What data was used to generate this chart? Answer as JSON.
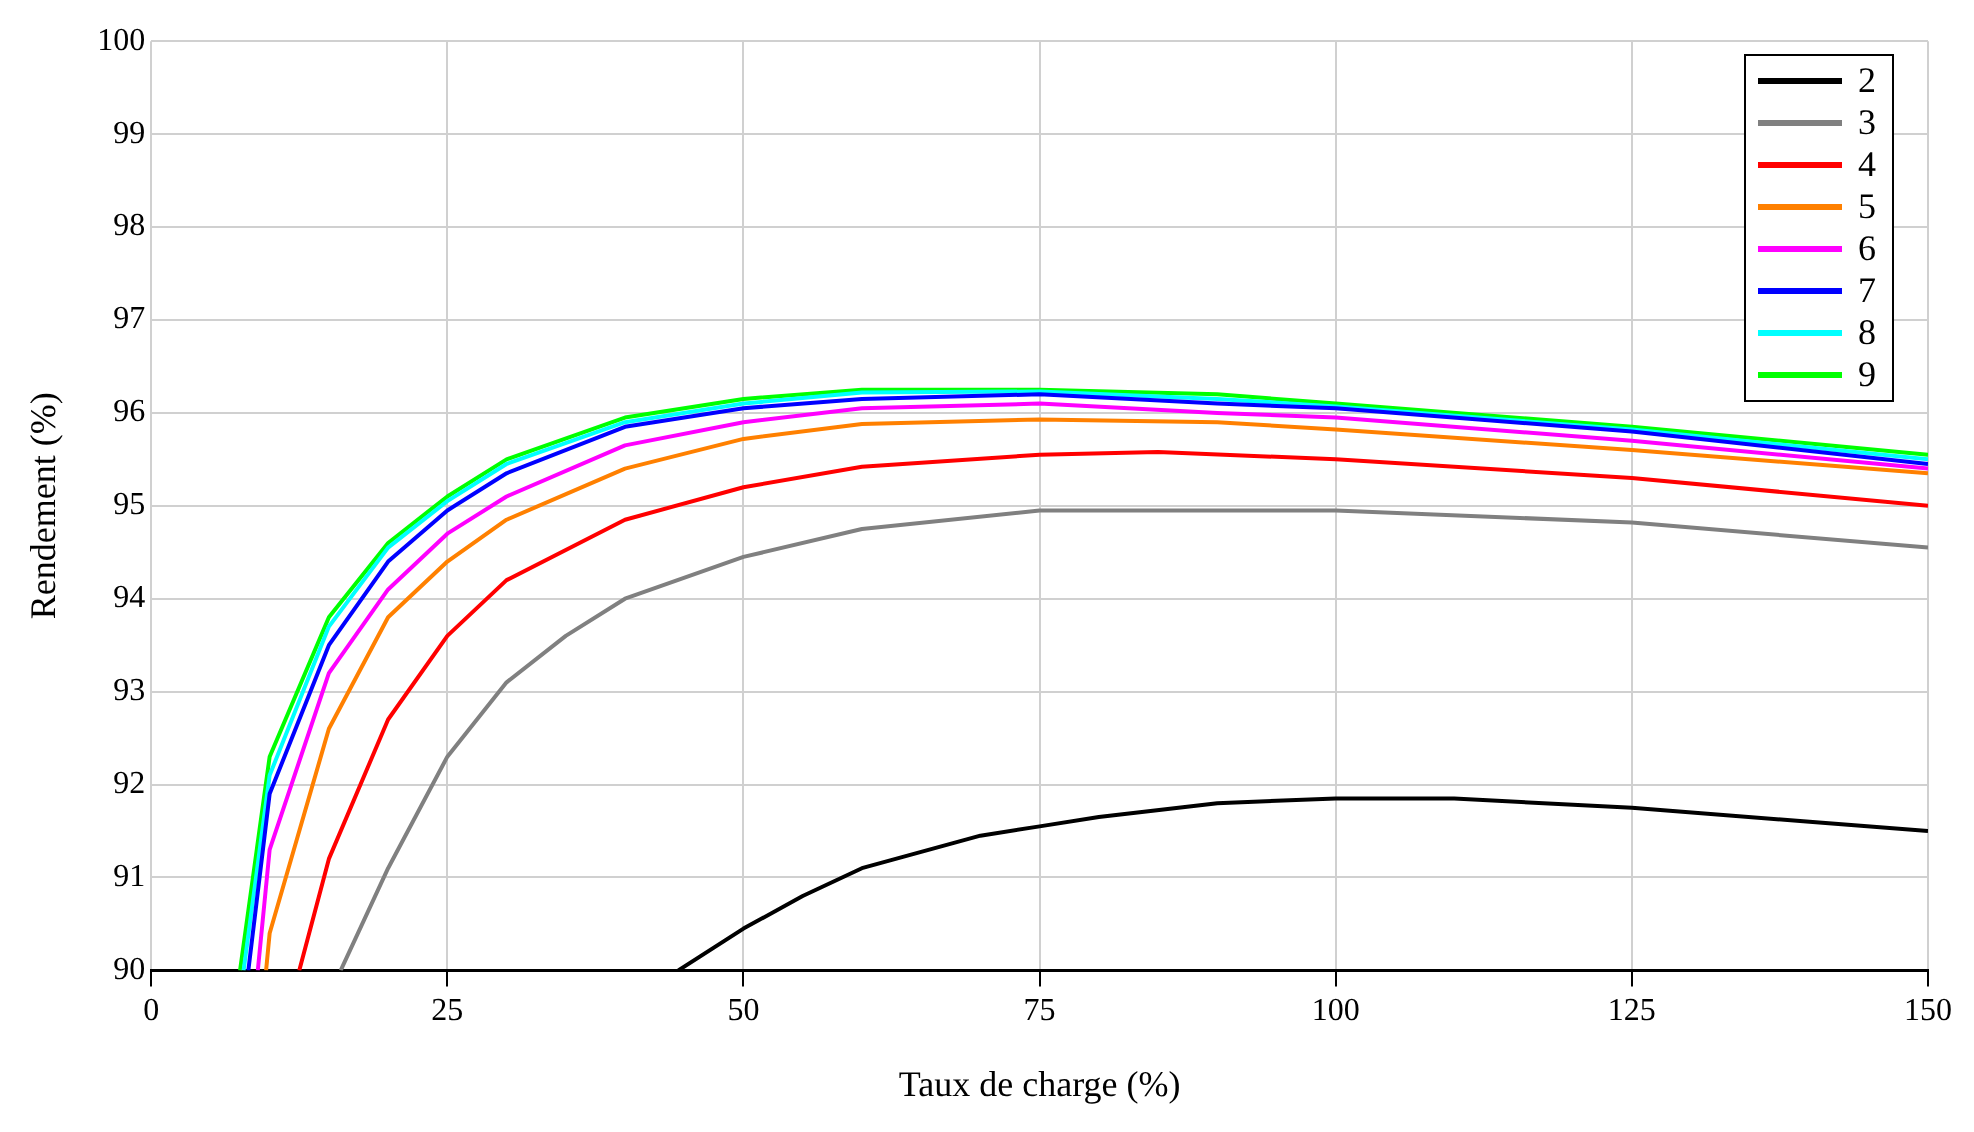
{
  "chart_data": {
    "type": "line",
    "xlabel": "Taux de charge (%)",
    "ylabel": "Rendement (%)",
    "xlim": [
      0,
      150
    ],
    "xticks": [
      0,
      25,
      50,
      75,
      100,
      125,
      150
    ],
    "ylim": [
      90,
      100
    ],
    "yticks": [
      90,
      91,
      92,
      93,
      94,
      95,
      96,
      97,
      98,
      99,
      100
    ],
    "grid": true,
    "legend": "top right",
    "marker": "none",
    "line_style": "solid",
    "series": [
      {
        "name": "2",
        "color": "#000000",
        "x": [
          44.5,
          50,
          55,
          60,
          70,
          75,
          80,
          90,
          100,
          110,
          125,
          140,
          150
        ],
        "values": [
          90,
          90.45,
          90.8,
          91.1,
          91.45,
          91.55,
          91.65,
          91.8,
          91.85,
          91.85,
          91.75,
          91.6,
          91.5
        ]
      },
      {
        "name": "3",
        "color": "#808080",
        "x": [
          16,
          20,
          25,
          30,
          35,
          40,
          50,
          60,
          75,
          100,
          125,
          150
        ],
        "values": [
          90,
          91.1,
          92.3,
          93.1,
          93.6,
          94,
          94.45,
          94.75,
          94.95,
          94.95,
          94.82,
          94.55
        ]
      },
      {
        "name": "4",
        "color": "#ff0000",
        "x": [
          12.5,
          15,
          20,
          25,
          30,
          40,
          50,
          60,
          75,
          85,
          100,
          125,
          150
        ],
        "values": [
          90,
          91.2,
          92.7,
          93.6,
          94.2,
          94.85,
          95.2,
          95.42,
          95.55,
          95.58,
          95.5,
          95.3,
          95
        ]
      },
      {
        "name": "5",
        "color": "#ff8000",
        "x": [
          9.7,
          10,
          15,
          20,
          25,
          30,
          40,
          50,
          60,
          75,
          90,
          100,
          125,
          150
        ],
        "values": [
          90,
          90.4,
          92.6,
          93.8,
          94.4,
          94.85,
          95.4,
          95.72,
          95.88,
          95.93,
          95.9,
          95.82,
          95.6,
          95.35
        ]
      },
      {
        "name": "6",
        "color": "#ff00ff",
        "x": [
          9,
          10,
          15,
          20,
          25,
          30,
          40,
          50,
          60,
          75,
          90,
          100,
          125,
          150
        ],
        "values": [
          90,
          91.3,
          93.2,
          94.1,
          94.7,
          95.1,
          95.65,
          95.9,
          96.05,
          96.1,
          96,
          95.95,
          95.7,
          95.4
        ]
      },
      {
        "name": "7",
        "color": "#0000ff",
        "x": [
          8.2,
          10,
          15,
          20,
          25,
          30,
          40,
          50,
          60,
          75,
          90,
          100,
          125,
          150
        ],
        "values": [
          90,
          91.9,
          93.5,
          94.4,
          94.95,
          95.35,
          95.85,
          96.05,
          96.15,
          96.2,
          96.1,
          96.05,
          95.8,
          95.45
        ]
      },
      {
        "name": "8",
        "color": "#00ffff",
        "x": [
          7.8,
          10,
          15,
          20,
          25,
          30,
          40,
          50,
          60,
          75,
          90,
          100,
          125,
          150
        ],
        "values": [
          90,
          92.1,
          93.7,
          94.55,
          95.05,
          95.45,
          95.9,
          96.1,
          96.22,
          96.23,
          96.15,
          96.07,
          95.82,
          95.5
        ]
      },
      {
        "name": "9",
        "color": "#00ff00",
        "x": [
          7.5,
          10,
          15,
          20,
          25,
          30,
          40,
          50,
          60,
          75,
          90,
          100,
          125,
          150
        ],
        "values": [
          90,
          92.3,
          93.8,
          94.6,
          95.1,
          95.5,
          95.95,
          96.15,
          96.25,
          96.25,
          96.2,
          96.1,
          95.85,
          95.55
        ]
      }
    ]
  }
}
